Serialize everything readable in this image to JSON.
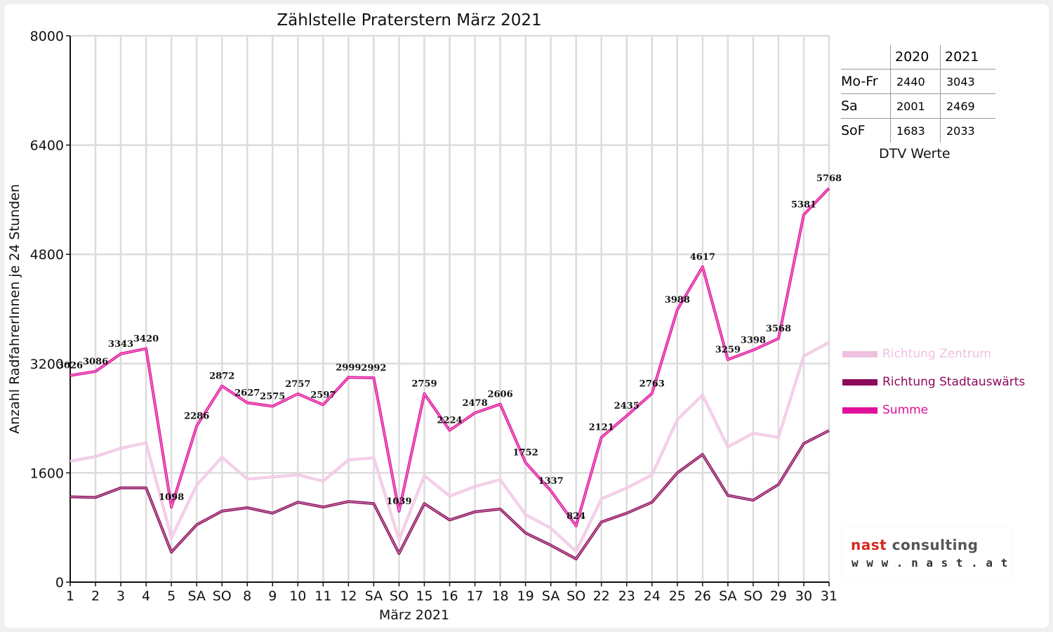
{
  "chart_data": {
    "type": "line",
    "title": "Zählstelle Praterstern März 2021",
    "xlabel": "März 2021",
    "ylabel": "Anzahl RadfahrerInnen je 24 Stunden",
    "ylim": [
      0,
      8000
    ],
    "yticks": [
      0,
      1600,
      3200,
      4800,
      6400,
      8000
    ],
    "categories": [
      "1",
      "2",
      "3",
      "4",
      "5",
      "SA",
      "SO",
      "8",
      "9",
      "10",
      "11",
      "12",
      "SA",
      "SO",
      "15",
      "16",
      "17",
      "18",
      "19",
      "SA",
      "SO",
      "22",
      "23",
      "24",
      "25",
      "26",
      "SA",
      "SO",
      "29",
      "30",
      "31"
    ],
    "weekend_category_colors": {
      "SO": "#ff0000"
    },
    "grid": "vertical and horizontal",
    "series": [
      {
        "name": "Richtung Zentrum",
        "color": "#f0c0e0",
        "values": [
          1770,
          1840,
          1960,
          2040,
          650,
          1420,
          1830,
          1510,
          1540,
          1570,
          1480,
          1790,
          1820,
          620,
          1560,
          1260,
          1400,
          1500,
          990,
          790,
          450,
          1220,
          1380,
          1570,
          2380,
          2740,
          1980,
          2180,
          2120,
          3310,
          3510
        ]
      },
      {
        "name": "Richtung Stadtauswärts",
        "color": "#8b0a5a",
        "values": [
          1250,
          1240,
          1380,
          1380,
          440,
          840,
          1040,
          1090,
          1010,
          1170,
          1100,
          1180,
          1150,
          420,
          1150,
          910,
          1030,
          1070,
          720,
          540,
          340,
          880,
          1010,
          1170,
          1600,
          1870,
          1270,
          1200,
          1430,
          2030,
          2220
        ]
      },
      {
        "name": "Summe",
        "color": "#e0109a",
        "values": [
          3026,
          3086,
          3343,
          3420,
          1098,
          2286,
          2872,
          2627,
          2575,
          2757,
          2597,
          2999,
          2992,
          1039,
          2759,
          2224,
          2478,
          2606,
          1752,
          1337,
          824,
          2121,
          2435,
          2763,
          3988,
          4617,
          3259,
          3398,
          3568,
          5381,
          5768
        ]
      }
    ],
    "data_labels_series": "Summe",
    "legend_placement": "right"
  },
  "dtv_table": {
    "headers": [
      "2020",
      "2021"
    ],
    "rows": [
      {
        "label": "Mo-Fr",
        "v2020": "2440",
        "v2021": "3043"
      },
      {
        "label": "Sa",
        "v2020": "2001",
        "v2021": "2469"
      },
      {
        "label": "SoF",
        "v2020": "1683",
        "v2021": "2033"
      }
    ],
    "caption": "DTV Werte"
  },
  "legend": [
    {
      "label": "Richtung Zentrum",
      "color": "#f0c0e0"
    },
    {
      "label": "Richtung Stadtauswärts",
      "color": "#8b0a5a"
    },
    {
      "label": "Summe",
      "color": "#e0109a"
    }
  ],
  "logo": {
    "brand_part1": "nast",
    "brand_part2": "consulting",
    "url_text": "w w w . n a s t . a t",
    "colors": {
      "brand_part1": "#d6291f",
      "brand_part2": "#555555"
    }
  }
}
